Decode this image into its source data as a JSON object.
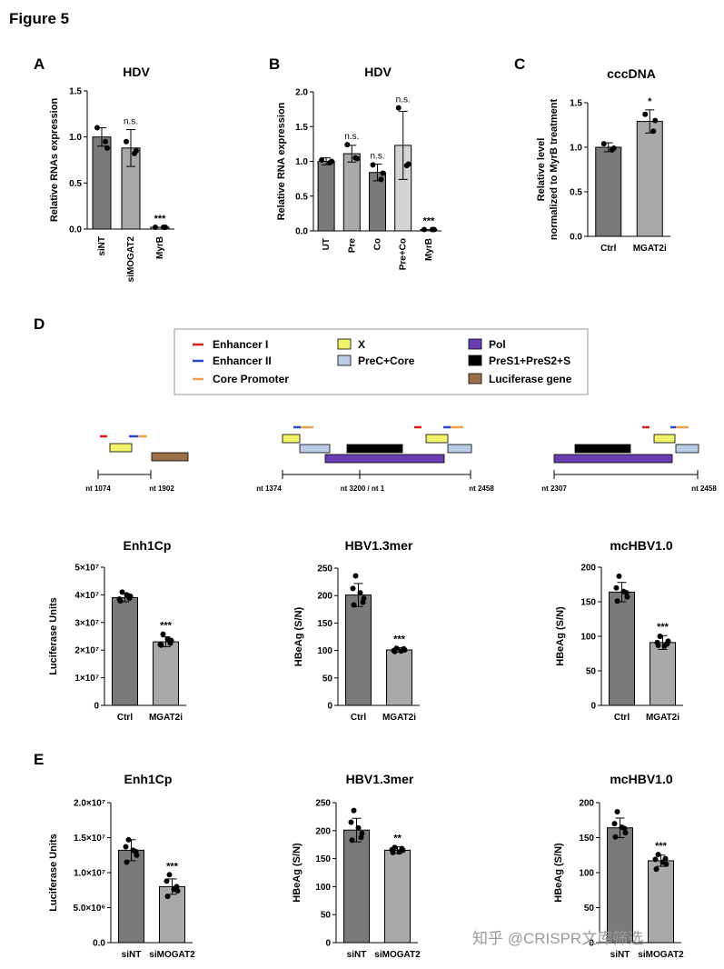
{
  "figure_title": "Figure 5",
  "watermark": "知乎 @CRISPR文库筛选",
  "colors": {
    "bar_dark": "#7a7a7a",
    "bar_mid": "#a9a9a9",
    "bar_light": "#d4d4d4",
    "enhancer1": "#d62020",
    "enhancer2": "#2a4bd0",
    "core_promoter": "#f0a050",
    "x_gene": "#f3f36a",
    "prec_core": "#b9cde6",
    "pol": "#6a3eb2",
    "pres": "#000000",
    "luciferase": "#9b7048"
  },
  "legend": {
    "panel": "D",
    "items": [
      {
        "label": "Enhancer I",
        "kind": "line",
        "color": "#d62020"
      },
      {
        "label": "X",
        "kind": "box",
        "color": "#f3f36a"
      },
      {
        "label": "Pol",
        "kind": "box",
        "color": "#6a3eb2"
      },
      {
        "label": "Enhancer II",
        "kind": "line",
        "color": "#2a4bd0"
      },
      {
        "label": "PreC+Core",
        "kind": "box",
        "color": "#b9cde6"
      },
      {
        "label": "PreS1+PreS2+S",
        "kind": "box",
        "color": "#000000"
      },
      {
        "label": "Core Promoter",
        "kind": "line",
        "color": "#f0a050"
      },
      {
        "label": "Luciferase gene",
        "kind": "box",
        "color": "#9b7048"
      }
    ]
  },
  "maps": [
    {
      "start_label": "nt 1074",
      "end_label": "nt 1902"
    },
    {
      "start_label": "nt 1374",
      "mid_label": "nt 3200 / nt 1",
      "end_label": "nt 2458"
    },
    {
      "start_label": "nt 2307",
      "end_label": "nt 2458"
    }
  ],
  "chart_data": [
    {
      "id": "A",
      "panel": "A",
      "type": "bar",
      "title": "HDV",
      "ylabel": "Relative RNAs expression",
      "ylim": [
        0,
        1.5
      ],
      "yticks": [
        "0.0",
        "0.5",
        "1.0",
        "1.5"
      ],
      "ytick_values": [
        0,
        0.5,
        1.0,
        1.5
      ],
      "categories": [
        "siNT",
        "siMOGAT2",
        "MyrB"
      ],
      "values": [
        1.0,
        0.88,
        0.02
      ],
      "errors": [
        0.1,
        0.2,
        0.0
      ],
      "points": [
        [
          1.1,
          0.95,
          0.88
        ],
        [
          0.95,
          0.82,
          0.85
        ],
        [
          0.02,
          0.02,
          0.02
        ]
      ],
      "significance": [
        "",
        "n.s.",
        "***"
      ]
    },
    {
      "id": "B",
      "panel": "B",
      "type": "bar",
      "title": "HDV",
      "ylabel": "Relative RNA expression",
      "ylim": [
        0,
        2.0
      ],
      "yticks": [
        "0.0",
        "0.5",
        "1.0",
        "1.5",
        "2.0"
      ],
      "ytick_values": [
        0,
        0.5,
        1.0,
        1.5,
        2.0
      ],
      "categories": [
        "UT",
        "Pre",
        "Co",
        "Pre+Co",
        "MyrB"
      ],
      "values": [
        1.0,
        1.11,
        0.84,
        1.23,
        0.02
      ],
      "errors": [
        0.05,
        0.12,
        0.12,
        0.49,
        0.0
      ],
      "points": [
        [
          1.02,
          0.98,
          1.0
        ],
        [
          1.24,
          1.05,
          1.04
        ],
        [
          0.95,
          0.74,
          0.83
        ],
        [
          1.77,
          0.94,
          0.96
        ],
        [
          0.02,
          0.02,
          0.02
        ]
      ],
      "significance": [
        "",
        "n.s.",
        "n.s.",
        "n.s.",
        "***"
      ]
    },
    {
      "id": "C",
      "panel": "C",
      "type": "bar",
      "title": "cccDNA",
      "ylabel": "Relative level normalized to MyrB treatment",
      "ylim": [
        0,
        1.5
      ],
      "yticks": [
        "0.0",
        "0.5",
        "1.0",
        "1.5"
      ],
      "ytick_values": [
        0,
        0.5,
        1.0,
        1.5
      ],
      "categories": [
        "Ctrl",
        "MGAT2i"
      ],
      "values": [
        1.0,
        1.29
      ],
      "errors": [
        0.05,
        0.13
      ],
      "points": [
        [
          1.04,
          0.97,
          0.99
        ],
        [
          1.37,
          1.18,
          1.3
        ]
      ],
      "significance": [
        "",
        "*"
      ]
    },
    {
      "id": "D1",
      "panel": "D",
      "type": "bar",
      "title": "Enh1Cp",
      "ylabel": "Luciferase Units",
      "ylim": [
        0,
        50000000
      ],
      "yticks": [
        "0",
        "1×10⁷",
        "2×10⁷",
        "3×10⁷",
        "4×10⁷",
        "5×10⁷"
      ],
      "ytick_values": [
        0,
        10000000,
        20000000,
        30000000,
        40000000,
        50000000
      ],
      "categories": [
        "Ctrl",
        "MGAT2i"
      ],
      "values": [
        39000000,
        23000000
      ],
      "errors": [
        1500000,
        1800000
      ],
      "points": [
        [
          41000000,
          38500000,
          40000000,
          39500000,
          37800000,
          38800000
        ],
        [
          25800000,
          22000000,
          24000000,
          23500000,
          21800000,
          22500000
        ]
      ],
      "significance": [
        "",
        "***"
      ]
    },
    {
      "id": "D2",
      "panel": "D",
      "type": "bar",
      "title": "HBV1.3mer",
      "ylabel": "HBeAg (S/N)",
      "ylim": [
        0,
        250
      ],
      "yticks": [
        "0",
        "50",
        "100",
        "150",
        "200",
        "250"
      ],
      "ytick_values": [
        0,
        50,
        100,
        150,
        200,
        250
      ],
      "categories": [
        "Ctrl",
        "MGAT2i"
      ],
      "values": [
        201,
        101
      ],
      "errors": [
        21,
        4
      ],
      "points": [
        [
          236,
          213,
          205,
          195,
          183,
          188
        ],
        [
          104,
          100,
          99,
          101,
          98,
          103
        ]
      ],
      "significance": [
        "",
        "***"
      ]
    },
    {
      "id": "D3",
      "panel": "D",
      "type": "bar",
      "title": "mcHBV1.0",
      "ylabel": "HBeAg (S/N)",
      "ylim": [
        0,
        200
      ],
      "yticks": [
        "0",
        "50",
        "100",
        "150",
        "200"
      ],
      "ytick_values": [
        0,
        50,
        100,
        150,
        200
      ],
      "categories": [
        "Ctrl",
        "MGAT2i"
      ],
      "values": [
        164,
        91
      ],
      "errors": [
        14,
        10
      ],
      "points": [
        [
          187,
          170,
          165,
          157,
          151,
          163
        ],
        [
          100,
          91,
          86,
          93,
          87,
          89
        ]
      ],
      "significance": [
        "",
        "***"
      ]
    },
    {
      "id": "E1",
      "panel": "E",
      "type": "bar",
      "title": "Enh1Cp",
      "ylabel": "Luciferase Units",
      "ylim": [
        0,
        20000000
      ],
      "yticks": [
        "0.0",
        "5.0×10⁶",
        "1.0×10⁷",
        "1.5×10⁷",
        "2.0×10⁷"
      ],
      "ytick_values": [
        0,
        5000000,
        10000000,
        15000000,
        20000000
      ],
      "categories": [
        "siNT",
        "siMOGAT2"
      ],
      "values": [
        13200000,
        8000000
      ],
      "errors": [
        1500000,
        1100000
      ],
      "points": [
        [
          14700000,
          13700000,
          13200000,
          12500000,
          11500000,
          13000000
        ],
        [
          9700000,
          8800000,
          7600000,
          7400000,
          6600000,
          8000000
        ]
      ],
      "significance": [
        "",
        "***"
      ]
    },
    {
      "id": "E2",
      "panel": "E",
      "type": "bar",
      "title": "HBV1.3mer",
      "ylabel": "HBeAg (S/N)",
      "ylim": [
        0,
        250
      ],
      "yticks": [
        "0",
        "50",
        "100",
        "150",
        "200",
        "250"
      ],
      "ytick_values": [
        0,
        50,
        100,
        150,
        200,
        250
      ],
      "categories": [
        "siNT",
        "siMOGAT2"
      ],
      "values": [
        201,
        165
      ],
      "errors": [
        21,
        6
      ],
      "points": [
        [
          236,
          215,
          205,
          195,
          183,
          188
        ],
        [
          170,
          166,
          162,
          165,
          161,
          168
        ]
      ],
      "significance": [
        "",
        "**"
      ]
    },
    {
      "id": "E3",
      "panel": "E",
      "type": "bar",
      "title": "mcHBV1.0",
      "ylabel": "HBeAg (S/N)",
      "ylim": [
        0,
        200
      ],
      "yticks": [
        "0",
        "50",
        "100",
        "150",
        "200"
      ],
      "ytick_values": [
        0,
        50,
        100,
        150,
        200
      ],
      "categories": [
        "siNT",
        "siMOGAT2"
      ],
      "values": [
        164,
        117
      ],
      "errors": [
        14,
        8
      ],
      "points": [
        [
          187,
          170,
          165,
          157,
          151,
          163
        ],
        [
          126,
          119,
          115,
          112,
          105,
          120
        ]
      ],
      "significance": [
        "",
        "***"
      ]
    }
  ]
}
